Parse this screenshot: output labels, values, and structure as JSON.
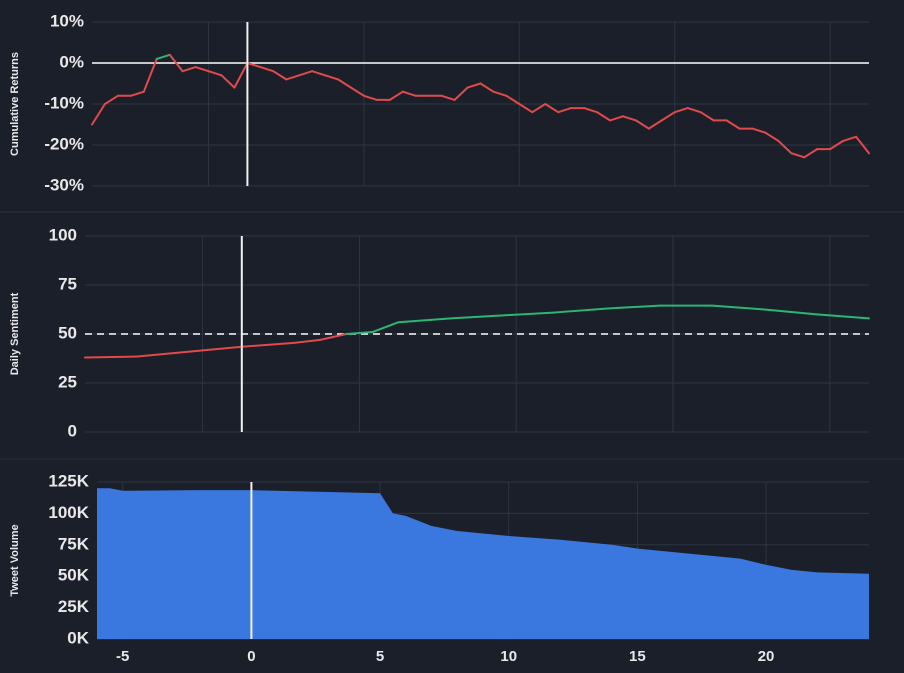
{
  "chart_data": [
    {
      "type": "line",
      "ylabel": "Cumulative Returns",
      "xlim": [
        -6,
        24
      ],
      "ylim": [
        -30,
        10
      ],
      "yticks": [
        {
          "value": 10,
          "label": "10%"
        },
        {
          "value": 0,
          "label": "0%"
        },
        {
          "value": -10,
          "label": "-10%"
        },
        {
          "value": -20,
          "label": "-20%"
        },
        {
          "value": -30,
          "label": "-30%"
        }
      ],
      "xgrid": [
        -1.5,
        4.5,
        10.5,
        16.5,
        22.5
      ],
      "event_x": 0,
      "threshold": 0,
      "threshold_style": "solid",
      "color_above": "#2bb673",
      "color_below": "#e04a4a",
      "x": [
        -6,
        -5.5,
        -5,
        -4.5,
        -4,
        -3.5,
        -3,
        -2.5,
        -2,
        -1.5,
        -1,
        -0.5,
        0,
        0.5,
        1,
        1.5,
        2,
        2.5,
        3,
        3.5,
        4,
        4.5,
        5,
        5.5,
        6,
        6.5,
        7,
        7.5,
        8,
        8.5,
        9,
        9.5,
        10,
        10.5,
        11,
        11.5,
        12,
        12.5,
        13,
        13.5,
        14,
        14.5,
        15,
        15.5,
        16,
        16.5,
        17,
        17.5,
        18,
        18.5,
        19,
        19.5,
        20,
        20.5,
        21,
        21.5,
        22,
        22.5,
        23,
        23.5,
        24
      ],
      "values": [
        -15,
        -10,
        -8,
        -8,
        -7,
        1,
        2,
        -2,
        -1,
        -2,
        -3,
        -6,
        0,
        -1,
        -2,
        -4,
        -3,
        -2,
        -3,
        -4,
        -6,
        -8,
        -9,
        -9,
        -7,
        -8,
        -8,
        -8,
        -9,
        -6,
        -5,
        -7,
        -8,
        -10,
        -12,
        -10,
        -12,
        -11,
        -11,
        -12,
        -14,
        -13,
        -14,
        -16,
        -14,
        -12,
        -11,
        -12,
        -14,
        -14,
        -16,
        -16,
        -17,
        -19,
        -22,
        -23,
        -21,
        -21,
        -19,
        -18,
        -22
      ]
    },
    {
      "type": "line",
      "ylabel": "Daily Sentiment",
      "xlim": [
        -6,
        24
      ],
      "ylim": [
        0,
        100
      ],
      "yticks": [
        0,
        25,
        50,
        75,
        100
      ],
      "xgrid": [
        -1.5,
        4.5,
        10.5,
        16.5,
        22.5
      ],
      "event_x": 0,
      "threshold": 50,
      "threshold_style": "dashed",
      "color_above": "#2bb673",
      "color_below": "#e04a4a",
      "x": [
        -6,
        -4,
        -2,
        0,
        2,
        3,
        4,
        5,
        6,
        8,
        10,
        12,
        14,
        16,
        18,
        20,
        22,
        24
      ],
      "values": [
        38,
        38.5,
        41,
        43.5,
        45.5,
        47,
        50,
        51,
        56,
        58,
        59.5,
        61,
        63,
        64.5,
        64.5,
        62.5,
        60,
        58
      ]
    },
    {
      "type": "area",
      "ylabel": "Tweet Volume",
      "xlim": [
        -6,
        24
      ],
      "ylim": [
        0,
        125000
      ],
      "yticks": [
        {
          "value": 0,
          "label": "0K"
        },
        {
          "value": 25000,
          "label": "25K"
        },
        {
          "value": 50000,
          "label": "50K"
        },
        {
          "value": 75000,
          "label": "75K"
        },
        {
          "value": 100000,
          "label": "100K"
        },
        {
          "value": 125000,
          "label": "125K"
        }
      ],
      "xticks": [
        -5,
        0,
        5,
        10,
        15,
        20
      ],
      "event_x": 0,
      "color": "#3a78e0",
      "x": [
        -6,
        -5.5,
        -5,
        -2,
        0,
        3,
        5,
        5.5,
        6,
        7,
        8,
        10,
        12,
        14,
        15,
        16,
        18,
        19,
        20,
        21,
        22,
        24
      ],
      "values": [
        120000,
        120000,
        118000,
        118500,
        118500,
        117000,
        116000,
        100000,
        98000,
        90000,
        86000,
        82000,
        79000,
        75000,
        72000,
        70000,
        66000,
        64000,
        59000,
        55000,
        53000,
        52000
      ]
    }
  ]
}
